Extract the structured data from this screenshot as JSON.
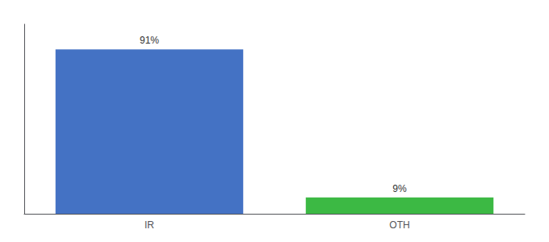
{
  "chart_data": {
    "type": "bar",
    "categories": [
      "IR",
      "OTH"
    ],
    "values": [
      91,
      9
    ],
    "value_labels": [
      "91%",
      "9%"
    ],
    "colors": [
      "#4472c4",
      "#3cb944"
    ],
    "ylim": [
      0,
      105
    ],
    "yticks": [],
    "grid": false,
    "data_labels": true,
    "tick_labels": "x"
  }
}
